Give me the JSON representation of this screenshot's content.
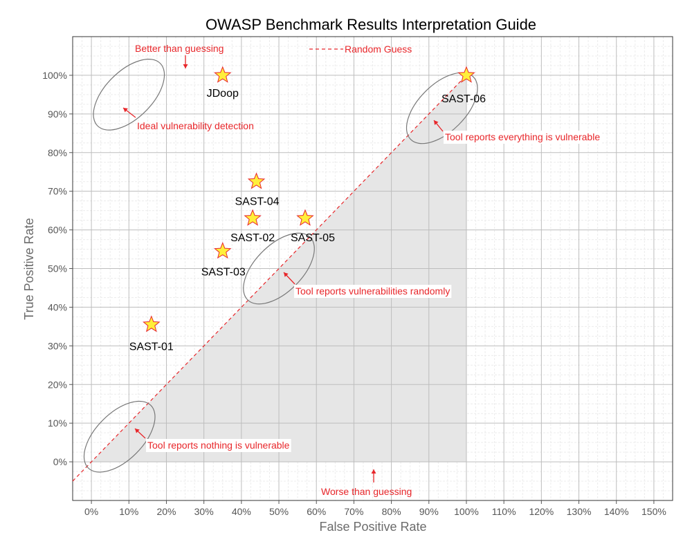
{
  "chart_data": {
    "type": "scatter",
    "title": "OWASP Benchmark Results Interpretation Guide",
    "xlabel": "False Positive Rate",
    "ylabel": "True Positive Rate",
    "xlim": [
      -5,
      155
    ],
    "ylim": [
      -10,
      110
    ],
    "x_ticks": [
      "0%",
      "10%",
      "20%",
      "30%",
      "40%",
      "50%",
      "60%",
      "70%",
      "80%",
      "90%",
      "100%",
      "110%",
      "120%",
      "130%",
      "140%",
      "150%"
    ],
    "y_ticks": [
      "0%",
      "10%",
      "20%",
      "30%",
      "40%",
      "50%",
      "60%",
      "70%",
      "80%",
      "90%",
      "100%"
    ],
    "grid": true,
    "points": [
      {
        "label": "JDoop",
        "x": 35,
        "y": 100
      },
      {
        "label": "SAST-04",
        "x": 44,
        "y": 72.5
      },
      {
        "label": "SAST-02",
        "x": 43,
        "y": 63
      },
      {
        "label": "SAST-05",
        "x": 57,
        "y": 63
      },
      {
        "label": "SAST-03",
        "x": 35,
        "y": 54.5
      },
      {
        "label": "SAST-01",
        "x": 16,
        "y": 35.5
      },
      {
        "label": "SAST-06",
        "x": 100,
        "y": 100
      }
    ],
    "reference_line": {
      "label": "Random Guess",
      "style": "dashed",
      "color": "#e8262a",
      "from": [
        -5,
        -5
      ],
      "to": [
        100,
        100
      ]
    },
    "annotations": [
      "Better than guessing",
      "Ideal vulnerability detection",
      "Tool reports everything is vulnerable",
      "Tool reports vulnerabilities randomly",
      "Tool reports nothing is vulnerable",
      "Worse than guessing"
    ],
    "shaded_region": "below random-guess line, 0%–100%",
    "colors": {
      "marker_fill": "#ffef3a",
      "marker_stroke": "#e8262a",
      "annotation": "#e8262a",
      "shade": "#e6e6e6"
    }
  }
}
